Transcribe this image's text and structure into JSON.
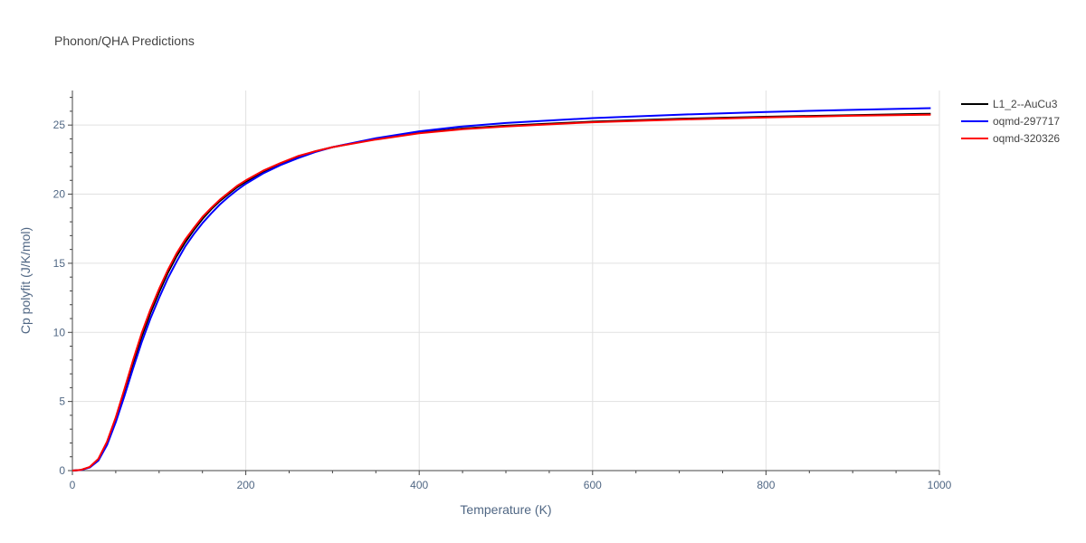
{
  "chart_data": {
    "type": "line",
    "title": "Phonon/QHA Predictions",
    "xlabel": "Temperature (K)",
    "ylabel": "Cp polyfit (J/K/mol)",
    "xlim": [
      0,
      1000
    ],
    "ylim": [
      0,
      27.5
    ],
    "xticks": [
      0,
      200,
      400,
      600,
      800,
      1000
    ],
    "yticks": [
      0,
      5,
      10,
      15,
      20,
      25
    ],
    "grid": true,
    "legend_position": "top-right",
    "series": [
      {
        "name": "L1_2--AuCu3",
        "color": "#000000",
        "x": [
          0,
          10,
          20,
          30,
          40,
          50,
          60,
          70,
          80,
          90,
          100,
          110,
          120,
          130,
          140,
          150,
          160,
          170,
          180,
          190,
          200,
          220,
          240,
          260,
          280,
          300,
          350,
          400,
          450,
          500,
          600,
          700,
          800,
          900,
          990
        ],
        "y": [
          0,
          0.05,
          0.25,
          0.8,
          2.0,
          3.7,
          5.7,
          7.8,
          9.7,
          11.4,
          12.9,
          14.3,
          15.5,
          16.5,
          17.4,
          18.2,
          18.9,
          19.5,
          20.0,
          20.5,
          20.9,
          21.6,
          22.2,
          22.7,
          23.1,
          23.4,
          24.0,
          24.45,
          24.75,
          24.95,
          25.25,
          25.45,
          25.6,
          25.72,
          25.82
        ]
      },
      {
        "name": "oqmd-297717",
        "color": "#0000ff",
        "x": [
          0,
          10,
          20,
          30,
          40,
          50,
          60,
          70,
          80,
          90,
          100,
          110,
          120,
          130,
          140,
          150,
          160,
          170,
          180,
          190,
          200,
          220,
          240,
          260,
          280,
          300,
          350,
          400,
          450,
          500,
          600,
          700,
          800,
          900,
          990
        ],
        "y": [
          0,
          0.04,
          0.22,
          0.72,
          1.85,
          3.5,
          5.4,
          7.4,
          9.3,
          11.0,
          12.5,
          13.9,
          15.1,
          16.2,
          17.1,
          17.9,
          18.6,
          19.25,
          19.8,
          20.3,
          20.75,
          21.5,
          22.1,
          22.6,
          23.05,
          23.4,
          24.05,
          24.55,
          24.9,
          25.15,
          25.5,
          25.75,
          25.95,
          26.1,
          26.22
        ]
      },
      {
        "name": "oqmd-320326",
        "color": "#ff0000",
        "x": [
          0,
          10,
          20,
          30,
          40,
          50,
          60,
          70,
          80,
          90,
          100,
          110,
          120,
          130,
          140,
          150,
          160,
          170,
          180,
          190,
          200,
          220,
          240,
          260,
          280,
          300,
          350,
          400,
          450,
          500,
          600,
          700,
          800,
          900,
          990
        ],
        "y": [
          0,
          0.05,
          0.27,
          0.85,
          2.1,
          3.85,
          5.9,
          8.0,
          9.95,
          11.65,
          13.15,
          14.5,
          15.7,
          16.7,
          17.55,
          18.35,
          19.0,
          19.6,
          20.1,
          20.6,
          21.0,
          21.7,
          22.25,
          22.75,
          23.1,
          23.4,
          23.95,
          24.4,
          24.7,
          24.9,
          25.2,
          25.4,
          25.55,
          25.67,
          25.75
        ]
      }
    ]
  }
}
